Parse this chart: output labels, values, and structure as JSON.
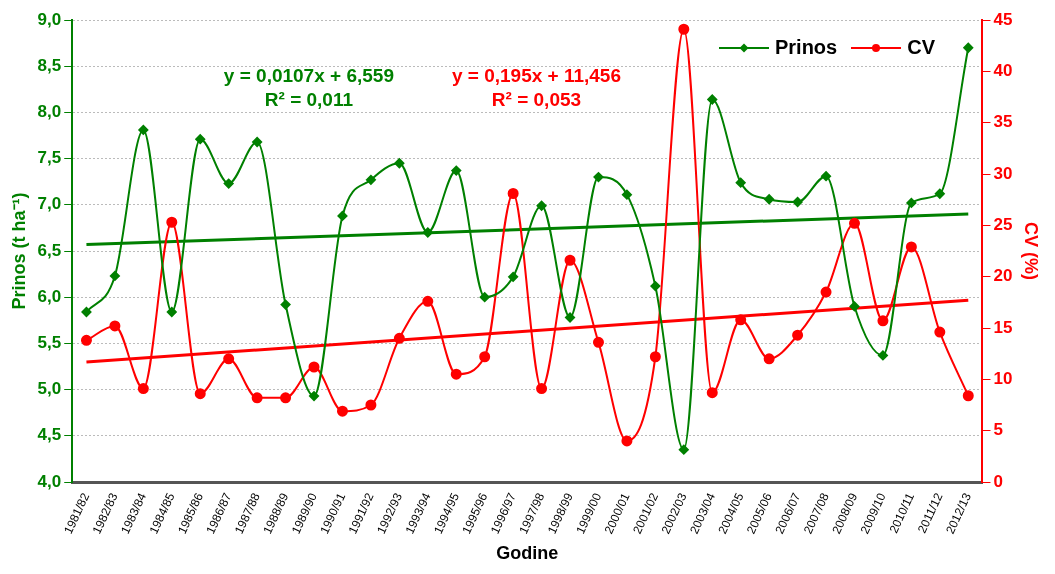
{
  "chart_data": {
    "type": "line",
    "xlabel": "Godine",
    "ylabel": "Prinos (t ha⁻¹)",
    "y2label": "CV (%)",
    "categories": [
      "1981/82",
      "1982/83",
      "1983/84",
      "1984/85",
      "1985/86",
      "1986/87",
      "1987/88",
      "1988/89",
      "1989/90",
      "1990/91",
      "1991/92",
      "1992/93",
      "1993/94",
      "1994/95",
      "1995/96",
      "1996/97",
      "1997/98",
      "1998/99",
      "1999/00",
      "2000/01",
      "2001/02",
      "2002/03",
      "2003/04",
      "2004/05",
      "2005/06",
      "2006/07",
      "2007/08",
      "2008/09",
      "2009/10",
      "2010/11",
      "2011/12",
      "2012/13"
    ],
    "series": [
      {
        "name": "Prinos",
        "color": "#008000",
        "marker": "diamond",
        "values": [
          5.84,
          6.23,
          7.81,
          5.84,
          7.71,
          7.23,
          7.68,
          5.92,
          4.93,
          6.88,
          7.27,
          7.45,
          6.7,
          7.37,
          6.0,
          6.22,
          6.99,
          5.78,
          7.3,
          7.11,
          6.12,
          4.35,
          8.14,
          7.24,
          7.06,
          7.03,
          7.31,
          5.9,
          5.37,
          7.02,
          7.12,
          8.7
        ]
      },
      {
        "name": "CV",
        "color": "#ff0000",
        "marker": "circle",
        "axis": "y2",
        "values": [
          13.8,
          15.2,
          9.1,
          25.3,
          8.6,
          12.0,
          8.2,
          8.2,
          11.2,
          6.9,
          7.5,
          14.0,
          17.6,
          10.5,
          12.2,
          28.1,
          9.1,
          21.6,
          13.6,
          4.0,
          12.2,
          44.1,
          8.7,
          15.8,
          12.0,
          14.3,
          18.5,
          25.2,
          15.7,
          22.9,
          14.6,
          8.4
        ]
      },
      {
        "type": "line",
        "color": "#008000",
        "marker": "none",
        "x": [
          "1981/82",
          "2012/13"
        ],
        "values": [
          6.57,
          6.9
        ]
      },
      {
        "type": "line",
        "color": "#ff0000",
        "marker": "none",
        "axis": "y2",
        "x": [
          "1981/82",
          "2012/13"
        ],
        "values": [
          11.7,
          17.7
        ]
      }
    ],
    "annotations": [
      "y = 0,0107x + 6,559\nR² = 0,011",
      "y = 0,195x + 11,456\nR² = 0,053"
    ],
    "ylim": [
      4,
      9
    ],
    "yticks": [
      {
        "value": 4,
        "label": "4,0"
      },
      {
        "value": 4.5,
        "label": "4,5"
      },
      {
        "value": 5,
        "label": "5,0"
      },
      {
        "value": 5.5,
        "label": "5,5"
      },
      {
        "value": 6,
        "label": "6,0"
      },
      {
        "value": 6.5,
        "label": "6,5"
      },
      {
        "value": 7,
        "label": "7,0"
      },
      {
        "value": 7.5,
        "label": "7,5"
      },
      {
        "value": 8,
        "label": "8,0"
      },
      {
        "value": 8.5,
        "label": "8,5"
      },
      {
        "value": 9,
        "label": "9,0"
      }
    ],
    "y2lim": [
      0,
      45
    ],
    "y2ticks": [
      0,
      5,
      10,
      15,
      20,
      25,
      30,
      35,
      40,
      45
    ],
    "grid": "y",
    "legend": "top right"
  }
}
